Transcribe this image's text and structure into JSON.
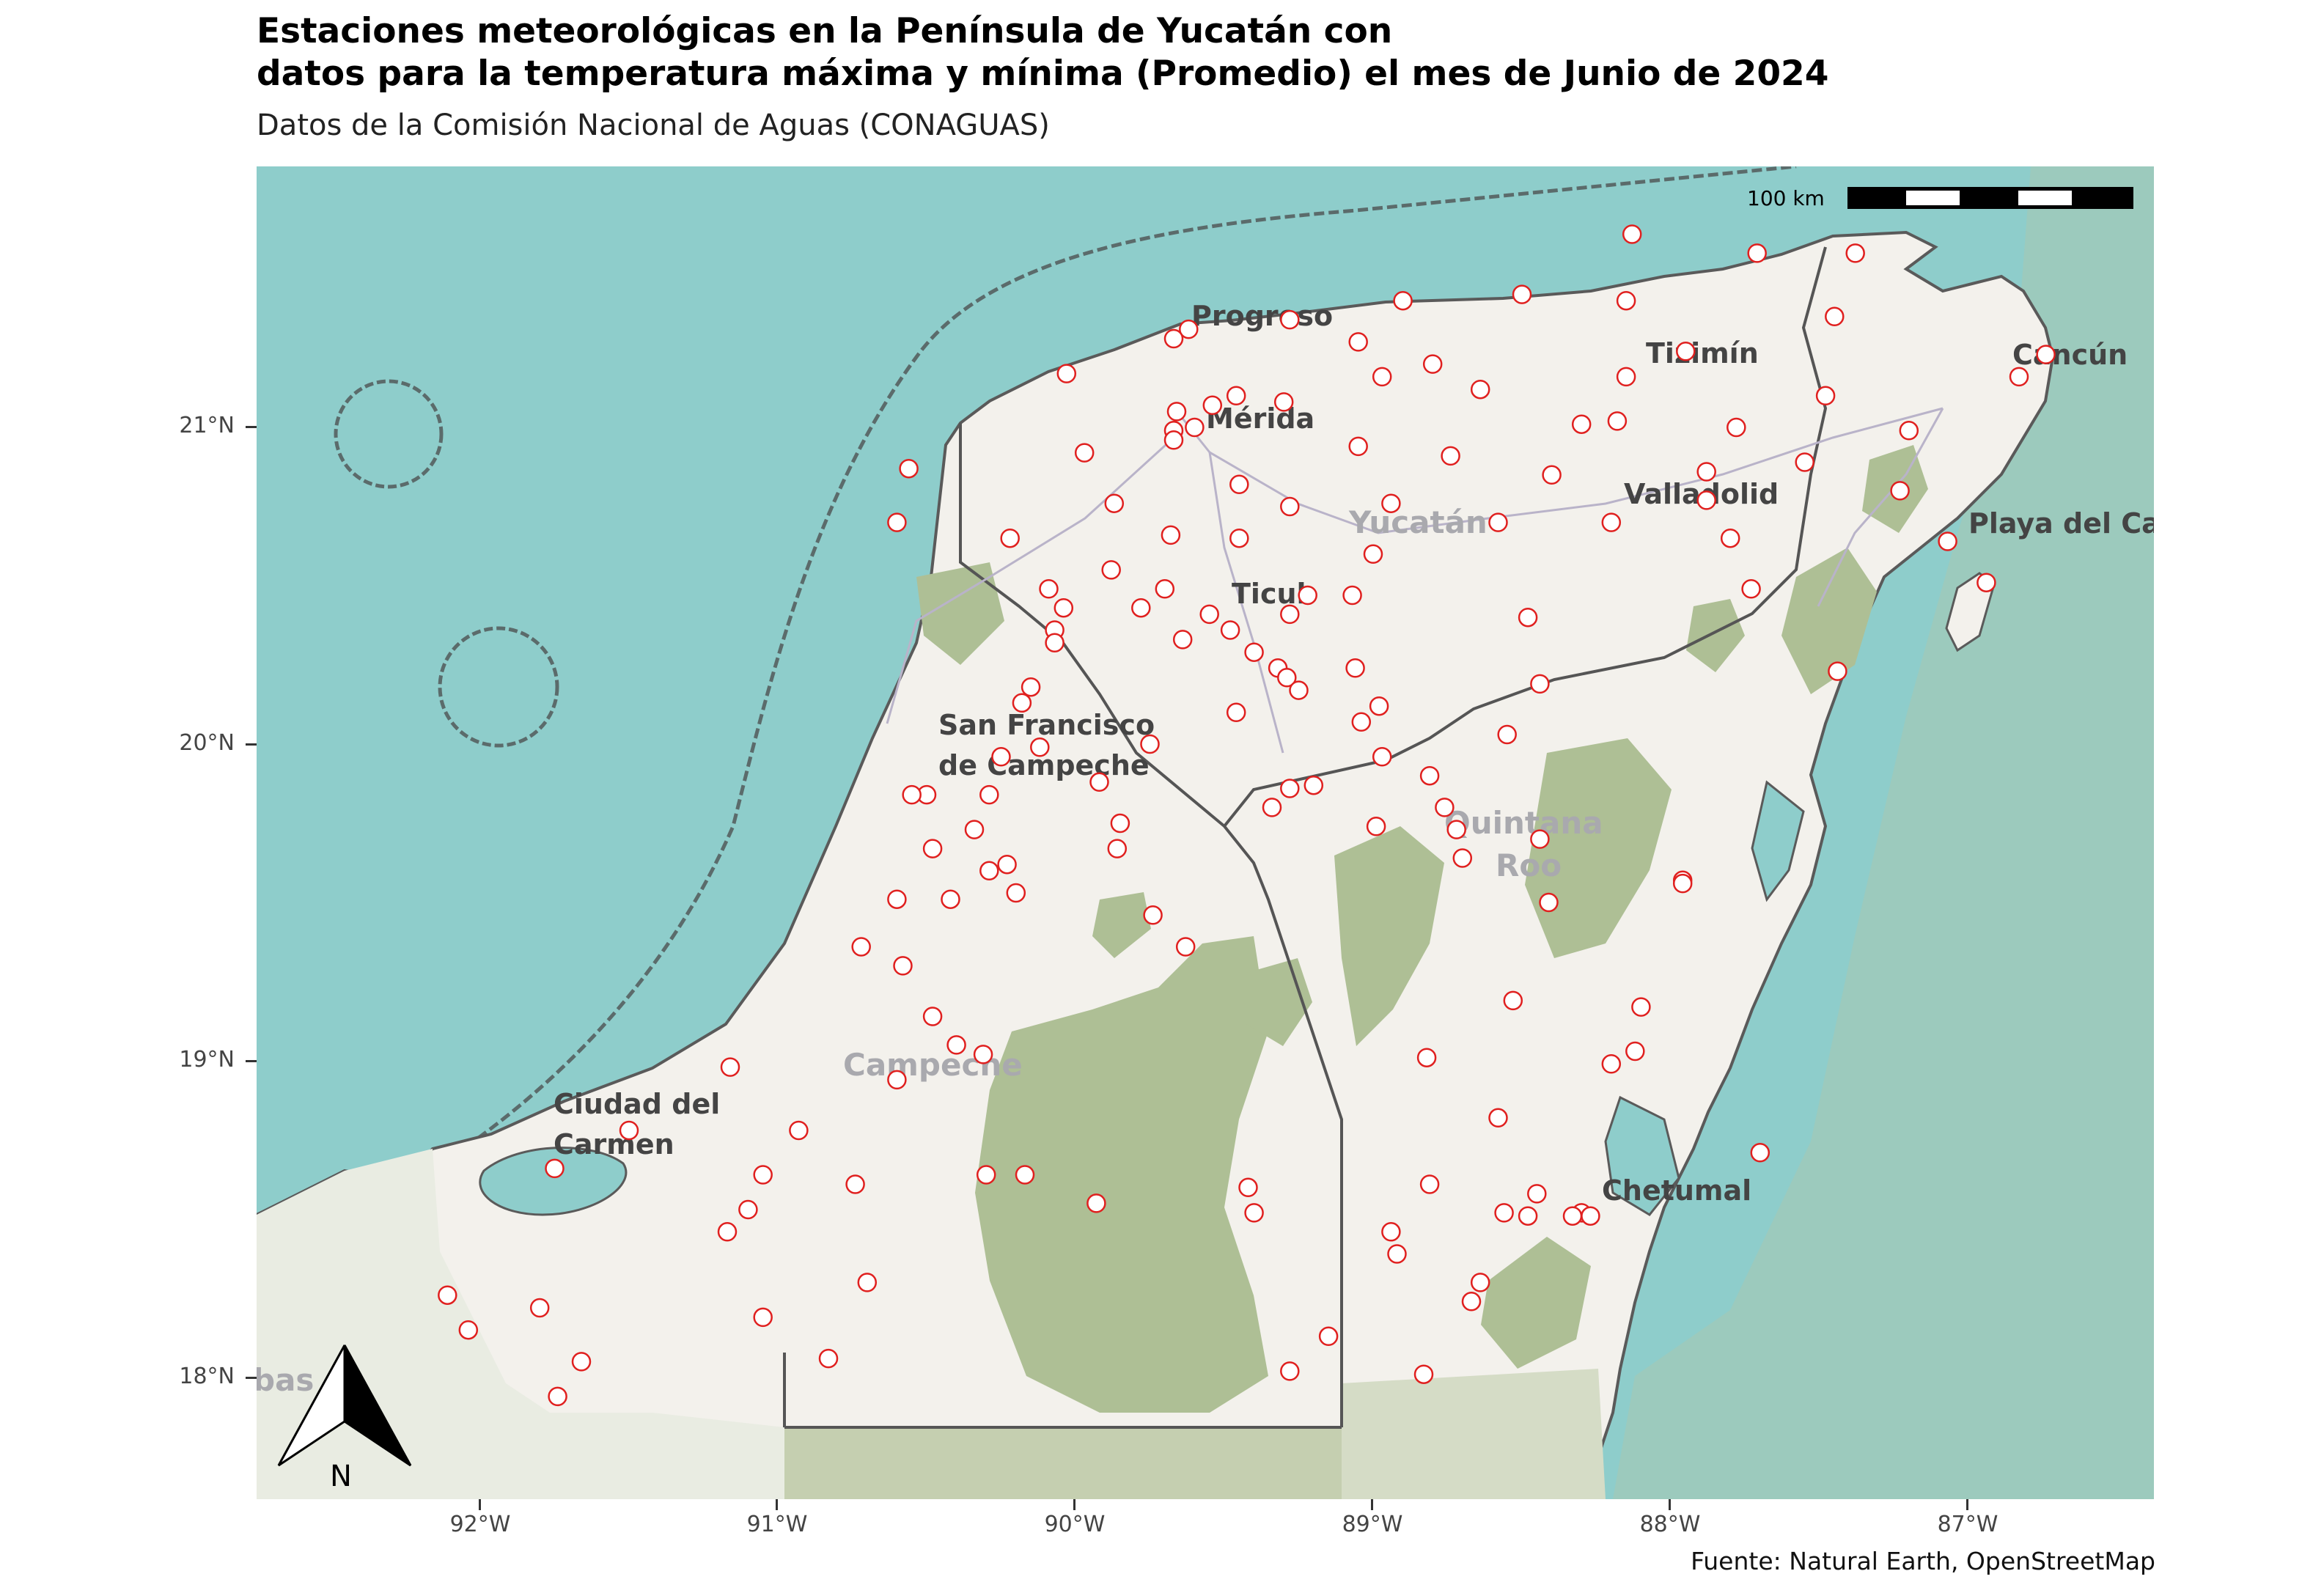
{
  "title_line1": "Estaciones meteorológicas en la Península de Yucatán con",
  "title_line2": "datos para la temperatura máxima y mínima (Promedio) el mes de Junio de 2024",
  "subtitle": "Datos de la Comisión Nacional de Aguas (CONAGUAS)",
  "caption": "Fuente: Natural Earth, OpenStreetMap",
  "scale_bar": {
    "label": "100 km"
  },
  "north_arrow": {
    "label": "N"
  },
  "axes": {
    "y_ticks": [
      "21°N",
      "20°N",
      "19°N",
      "18°N"
    ],
    "x_ticks": [
      "92°W",
      "91°W",
      "90°W",
      "89°W",
      "88°W",
      "87°W"
    ]
  },
  "place_labels": {
    "progreso": "Progreso",
    "merida": "Mérida",
    "tizimin": "Tizimín",
    "cancun": "Cancún",
    "valladolid": "Valladolid",
    "playa": "Playa del Ca",
    "yucatan": "Yucatán",
    "ticul": "Ticul",
    "campeche_city_1": "San Francisco",
    "campeche_city_2": "de Campeche",
    "quintana_1": "Quintana",
    "quintana_2": "Roo",
    "campeche_state": "Campeche",
    "carmen_1": "Ciudad del",
    "carmen_2": "Carmen",
    "chetumal": "Chetumal",
    "tabasco_partial": "bas"
  },
  "colors": {
    "sea": "#8ecdcb",
    "land": "#f3f1ec",
    "forest": "#aebf95",
    "station_stroke": "#e0201f",
    "border": "#555555"
  },
  "stations": [
    [
      -88.13,
      21.61
    ],
    [
      -87.71,
      21.55
    ],
    [
      -87.38,
      21.55
    ],
    [
      -88.9,
      21.4
    ],
    [
      -88.5,
      21.42
    ],
    [
      -88.15,
      21.4
    ],
    [
      -89.28,
      21.34
    ],
    [
      -89.62,
      21.31
    ],
    [
      -89.67,
      21.28
    ],
    [
      -89.05,
      21.27
    ],
    [
      -87.45,
      21.35
    ],
    [
      -87.95,
      21.24
    ],
    [
      -86.74,
      21.23
    ],
    [
      -88.8,
      21.2
    ],
    [
      -90.03,
      21.17
    ],
    [
      -88.97,
      21.16
    ],
    [
      -88.15,
      21.16
    ],
    [
      -86.83,
      21.16
    ],
    [
      -88.64,
      21.12
    ],
    [
      -87.48,
      21.1
    ],
    [
      -89.46,
      21.1
    ],
    [
      -89.3,
      21.08
    ],
    [
      -89.54,
      21.07
    ],
    [
      -89.66,
      21.05
    ],
    [
      -89.6,
      21.0
    ],
    [
      -89.67,
      20.99
    ],
    [
      -88.3,
      21.01
    ],
    [
      -88.18,
      21.02
    ],
    [
      -87.78,
      21.0
    ],
    [
      -87.2,
      20.99
    ],
    [
      -89.67,
      20.96
    ],
    [
      -89.97,
      20.92
    ],
    [
      -89.05,
      20.94
    ],
    [
      -88.74,
      20.91
    ],
    [
      -87.88,
      20.86
    ],
    [
      -87.55,
      20.89
    ],
    [
      -90.56,
      20.87
    ],
    [
      -88.4,
      20.85
    ],
    [
      -89.45,
      20.82
    ],
    [
      -87.23,
      20.8
    ],
    [
      -89.87,
      20.76
    ],
    [
      -88.94,
      20.76
    ],
    [
      -87.88,
      20.77
    ],
    [
      -89.28,
      20.75
    ],
    [
      -88.58,
      20.7
    ],
    [
      -88.2,
      20.7
    ],
    [
      -90.6,
      20.7
    ],
    [
      -89.68,
      20.66
    ],
    [
      -90.22,
      20.65
    ],
    [
      -89.45,
      20.65
    ],
    [
      -87.8,
      20.65
    ],
    [
      -87.07,
      20.64
    ],
    [
      -89.0,
      20.6
    ],
    [
      -89.88,
      20.55
    ],
    [
      -87.73,
      20.49
    ],
    [
      -90.09,
      20.49
    ],
    [
      -89.7,
      20.49
    ],
    [
      -86.94,
      20.51
    ],
    [
      -89.22,
      20.47
    ],
    [
      -89.07,
      20.47
    ],
    [
      -89.78,
      20.43
    ],
    [
      -90.04,
      20.43
    ],
    [
      -89.55,
      20.41
    ],
    [
      -89.28,
      20.41
    ],
    [
      -88.48,
      20.4
    ],
    [
      -90.07,
      20.36
    ],
    [
      -89.48,
      20.36
    ],
    [
      -89.64,
      20.33
    ],
    [
      -90.07,
      20.32
    ],
    [
      -89.4,
      20.29
    ],
    [
      -89.32,
      20.24
    ],
    [
      -89.29,
      20.21
    ],
    [
      -89.06,
      20.24
    ],
    [
      -87.44,
      20.23
    ],
    [
      -89.25,
      20.17
    ],
    [
      -90.15,
      20.18
    ],
    [
      -88.44,
      20.19
    ],
    [
      -88.98,
      20.12
    ],
    [
      -90.18,
      20.13
    ],
    [
      -89.46,
      20.1
    ],
    [
      -89.04,
      20.07
    ],
    [
      -88.55,
      20.03
    ],
    [
      -89.75,
      20.0
    ],
    [
      -90.12,
      19.99
    ],
    [
      -90.25,
      19.96
    ],
    [
      -88.97,
      19.96
    ],
    [
      -89.92,
      19.88
    ],
    [
      -88.81,
      19.9
    ],
    [
      -89.28,
      19.86
    ],
    [
      -89.2,
      19.87
    ],
    [
      -90.5,
      19.84
    ],
    [
      -90.55,
      19.84
    ],
    [
      -90.29,
      19.84
    ],
    [
      -89.34,
      19.8
    ],
    [
      -88.76,
      19.8
    ],
    [
      -88.99,
      19.74
    ],
    [
      -88.72,
      19.73
    ],
    [
      -90.34,
      19.73
    ],
    [
      -89.85,
      19.75
    ],
    [
      -88.44,
      19.7
    ],
    [
      -90.48,
      19.67
    ],
    [
      -89.86,
      19.67
    ],
    [
      -88.7,
      19.64
    ],
    [
      -90.29,
      19.6
    ],
    [
      -90.23,
      19.62
    ],
    [
      -87.96,
      19.57
    ],
    [
      -87.96,
      19.56
    ],
    [
      -90.2,
      19.53
    ],
    [
      -90.6,
      19.51
    ],
    [
      -90.42,
      19.51
    ],
    [
      -88.41,
      19.5
    ],
    [
      -89.74,
      19.46
    ],
    [
      -89.63,
      19.36
    ],
    [
      -90.72,
      19.36
    ],
    [
      -90.58,
      19.3
    ],
    [
      -88.53,
      19.19
    ],
    [
      -88.1,
      19.17
    ],
    [
      -90.48,
      19.14
    ],
    [
      -90.4,
      19.05
    ],
    [
      -90.31,
      19.02
    ],
    [
      -88.82,
      19.01
    ],
    [
      -88.12,
      19.03
    ],
    [
      -88.2,
      18.99
    ],
    [
      -91.16,
      18.98
    ],
    [
      -90.6,
      18.94
    ],
    [
      -88.58,
      18.82
    ],
    [
      -91.5,
      18.78
    ],
    [
      -90.93,
      18.78
    ],
    [
      -87.7,
      18.71
    ],
    [
      -91.75,
      18.66
    ],
    [
      -90.3,
      18.64
    ],
    [
      -90.17,
      18.64
    ],
    [
      -91.05,
      18.64
    ],
    [
      -90.74,
      18.61
    ],
    [
      -88.81,
      18.61
    ],
    [
      -89.42,
      18.6
    ],
    [
      -88.45,
      18.58
    ],
    [
      -89.93,
      18.55
    ],
    [
      -91.1,
      18.53
    ],
    [
      -89.4,
      18.52
    ],
    [
      -88.56,
      18.52
    ],
    [
      -88.48,
      18.51
    ],
    [
      -88.3,
      18.52
    ],
    [
      -88.27,
      18.51
    ],
    [
      -88.33,
      18.51
    ],
    [
      -91.17,
      18.46
    ],
    [
      -88.94,
      18.46
    ],
    [
      -88.92,
      18.39
    ],
    [
      -90.7,
      18.3
    ],
    [
      -88.64,
      18.3
    ],
    [
      -88.67,
      18.24
    ],
    [
      -92.11,
      18.26
    ],
    [
      -91.8,
      18.22
    ],
    [
      -91.05,
      18.19
    ],
    [
      -92.04,
      18.15
    ],
    [
      -89.15,
      18.13
    ],
    [
      -90.83,
      18.06
    ],
    [
      -91.66,
      18.05
    ],
    [
      -89.28,
      18.02
    ],
    [
      -88.83,
      18.01
    ],
    [
      -91.74,
      17.94
    ]
  ]
}
